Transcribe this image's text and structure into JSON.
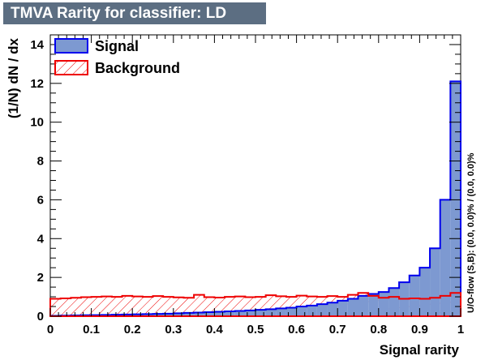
{
  "title": "TMVA Rarity for classifier: LD",
  "chart_data": {
    "type": "histogram",
    "title": "TMVA Rarity for classifier: LD",
    "xlabel": "Signal rarity",
    "ylabel": "(1/N) dN / dx",
    "xlim": [
      0,
      1
    ],
    "ylim": [
      0,
      14.5
    ],
    "x_ticks": [
      "0",
      "0.1",
      "0.2",
      "0.3",
      "0.4",
      "0.5",
      "0.6",
      "0.7",
      "0.8",
      "0.9",
      "1"
    ],
    "y_ticks": [
      "0",
      "2",
      "4",
      "6",
      "8",
      "10",
      "12",
      "14"
    ],
    "grid": false,
    "legend_position": "top-left",
    "bin_width": 0.025,
    "series": [
      {
        "name": "Signal",
        "style": "filled",
        "fill": "#7d99d1",
        "stroke": "#0000ee",
        "values": [
          0.02,
          0.03,
          0.04,
          0.05,
          0.06,
          0.07,
          0.08,
          0.09,
          0.1,
          0.11,
          0.12,
          0.13,
          0.15,
          0.17,
          0.19,
          0.21,
          0.23,
          0.25,
          0.27,
          0.3,
          0.33,
          0.36,
          0.4,
          0.44,
          0.5,
          0.55,
          0.62,
          0.7,
          0.8,
          0.9,
          1.05,
          1.15,
          1.25,
          1.45,
          1.75,
          2.1,
          2.5,
          3.5,
          6.0,
          12.1
        ]
      },
      {
        "name": "Background",
        "style": "hatched",
        "fill": "#ee0000",
        "stroke": "#ee0000",
        "values": [
          0.9,
          0.92,
          0.95,
          0.98,
          1.0,
          1.02,
          1.0,
          1.05,
          1.02,
          1.0,
          1.04,
          1.0,
          0.97,
          0.95,
          1.1,
          0.98,
          0.96,
          1.0,
          1.02,
          0.98,
          1.0,
          1.08,
          1.03,
          1.0,
          1.06,
          1.02,
          1.0,
          1.04,
          1.0,
          1.1,
          1.2,
          1.05,
          0.95,
          1.0,
          0.9,
          0.92,
          0.9,
          0.95,
          1.05,
          1.2
        ]
      }
    ],
    "side_note": "U/O-flow (S,B): (0.0, 0.0)% / (0.0, 0.0)%"
  }
}
